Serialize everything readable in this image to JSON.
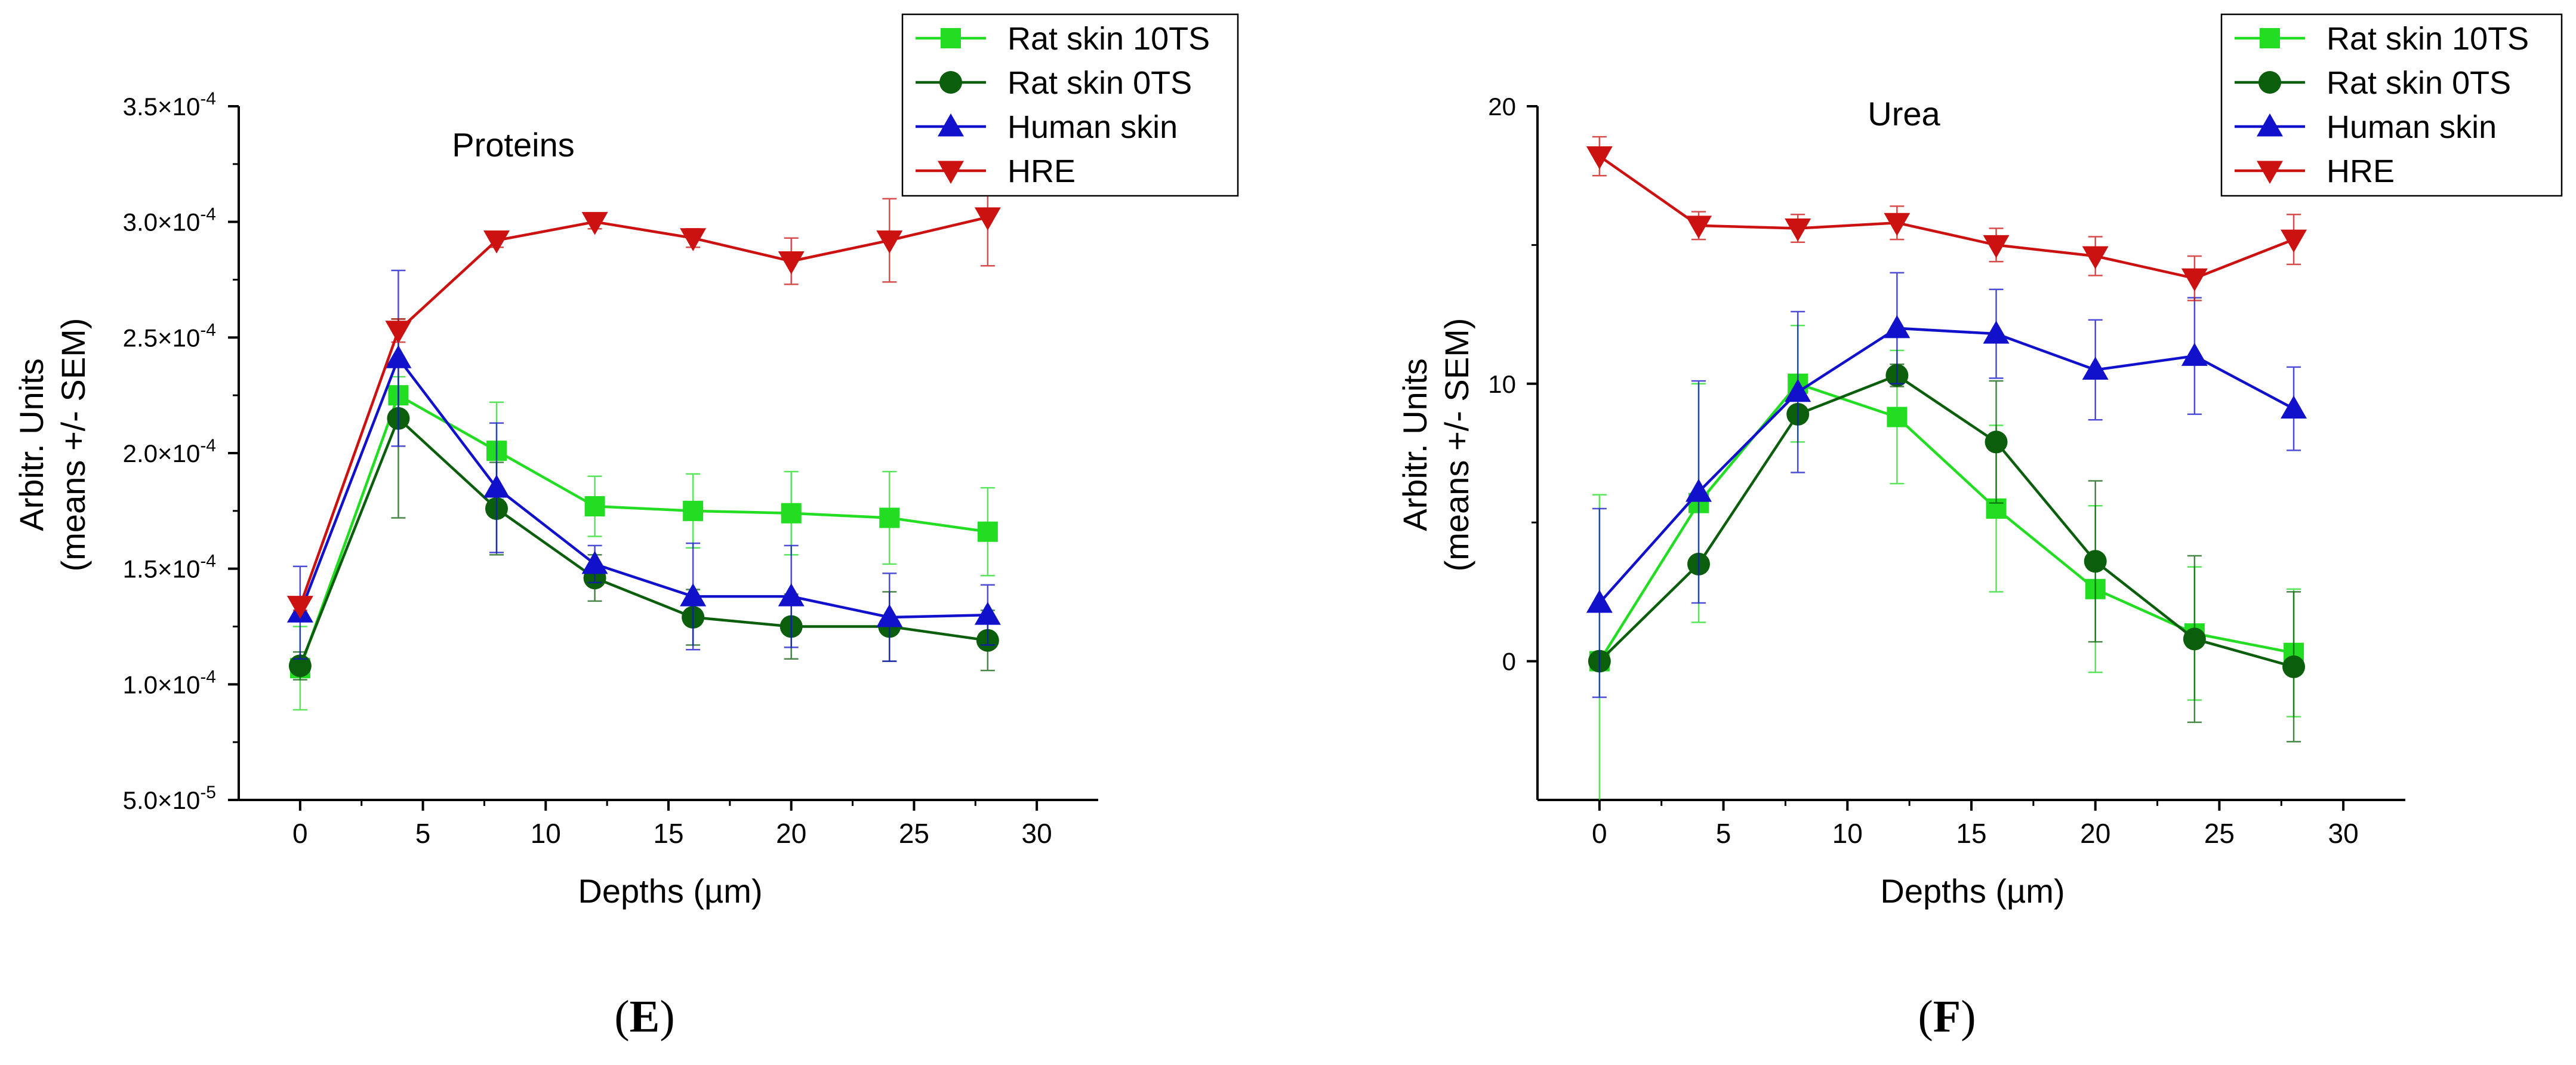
{
  "chart_data": [
    {
      "panel_label": "E",
      "type": "line",
      "title": "Proteins",
      "xlabel": "Depths (µm)",
      "ylabel_line1": "Arbitr. Units",
      "ylabel_line2": "(means +/- SEM)",
      "xlim": [
        -2.5,
        32.5
      ],
      "ylim": [
        5e-05,
        0.00035
      ],
      "xticks": [
        0,
        5,
        10,
        15,
        20,
        25,
        30
      ],
      "yticks": [
        5e-05,
        0.0001,
        0.00015,
        0.0002,
        0.00025,
        0.0003,
        0.00035
      ],
      "ytick_mantissas": [
        "5.0",
        "1.0",
        "1.5",
        "2.0",
        "2.5",
        "3.0",
        "3.5"
      ],
      "ytick_exponents": [
        "-5",
        "-4",
        "-4",
        "-4",
        "-4",
        "-4",
        "-4"
      ],
      "legend_position": "top-right",
      "x": [
        0,
        4,
        8,
        12,
        16,
        20,
        24,
        28
      ],
      "series": [
        {
          "name": "Rat skin 10TS",
          "color": "#22dd22",
          "marker": "square",
          "values": [
            0.000107,
            0.000225,
            0.000201,
            0.000177,
            0.000175,
            0.000174,
            0.000172,
            0.000166
          ],
          "errors": [
            1.8e-05,
            8e-06,
            2.1e-05,
            1.3e-05,
            1.6e-05,
            1.8e-05,
            2e-05,
            1.9e-05
          ]
        },
        {
          "name": "Rat skin 0TS",
          "color": "#0b5e0b",
          "marker": "circle",
          "values": [
            0.000108,
            0.000215,
            0.000176,
            0.000146,
            0.000129,
            0.000125,
            0.000125,
            0.000119
          ],
          "errors": [
            6e-06,
            4.3e-05,
            2e-05,
            1e-05,
            1.2e-05,
            1.4e-05,
            1.5e-05,
            1.3e-05
          ]
        },
        {
          "name": "Human skin",
          "color": "#1111cc",
          "marker": "triangle-up",
          "values": [
            0.000131,
            0.000241,
            0.000185,
            0.000152,
            0.000138,
            0.000138,
            0.000129,
            0.00013
          ],
          "errors": [
            2e-05,
            3.8e-05,
            2.8e-05,
            8e-06,
            2.3e-05,
            2.2e-05,
            1.9e-05,
            1.3e-05
          ]
        },
        {
          "name": "HRE",
          "color": "#cc1111",
          "marker": "triangle-down",
          "values": [
            0.000134,
            0.000253,
            0.000292,
            0.0003,
            0.000293,
            0.000283,
            0.000292,
            0.000302
          ],
          "errors": [
            2e-06,
            5e-06,
            3e-06,
            3e-06,
            4e-06,
            1e-05,
            1.8e-05,
            2.1e-05
          ]
        }
      ]
    },
    {
      "panel_label": "F",
      "type": "line",
      "title": "Urea",
      "xlabel": "Depths (µm)",
      "ylabel_line1": "Arbitr. Units",
      "ylabel_line2": "(means +/- SEM)",
      "xlim": [
        -2.5,
        32.5
      ],
      "ylim": [
        -5,
        20
      ],
      "xticks": [
        0,
        5,
        10,
        15,
        20,
        25,
        30
      ],
      "yticks": [
        0,
        10,
        20
      ],
      "ytick_labels": [
        "0",
        "10",
        "20"
      ],
      "legend_position": "top-right",
      "x": [
        0,
        4,
        8,
        12,
        16,
        20,
        24,
        28
      ],
      "series": [
        {
          "name": "Rat skin 10TS",
          "color": "#22dd22",
          "marker": "square",
          "values": [
            0.0,
            5.7,
            10.0,
            8.8,
            5.5,
            2.6,
            1.0,
            0.3
          ],
          "errors": [
            6.0,
            4.3,
            2.1,
            2.4,
            3.0,
            3.0,
            2.4,
            2.3
          ]
        },
        {
          "name": "Rat skin 0TS",
          "color": "#0b5e0b",
          "marker": "circle",
          "values": [
            0.0,
            3.5,
            8.9,
            10.3,
            7.9,
            3.6,
            0.8,
            -0.2
          ],
          "errors": [
            0.1,
            0.3,
            0.3,
            0.4,
            2.2,
            2.9,
            3.0,
            2.7
          ]
        },
        {
          "name": "Human skin",
          "color": "#1111cc",
          "marker": "triangle-up",
          "values": [
            2.1,
            6.1,
            9.7,
            12.0,
            11.8,
            10.5,
            11.0,
            9.1
          ],
          "errors": [
            3.4,
            4.0,
            2.9,
            2.0,
            1.6,
            1.8,
            2.1,
            1.5
          ]
        },
        {
          "name": "HRE",
          "color": "#cc1111",
          "marker": "triangle-down",
          "values": [
            18.2,
            15.7,
            15.6,
            15.8,
            15.0,
            14.6,
            13.8,
            15.2
          ],
          "errors": [
            0.7,
            0.5,
            0.5,
            0.6,
            0.6,
            0.7,
            0.8,
            0.9
          ]
        }
      ]
    }
  ]
}
